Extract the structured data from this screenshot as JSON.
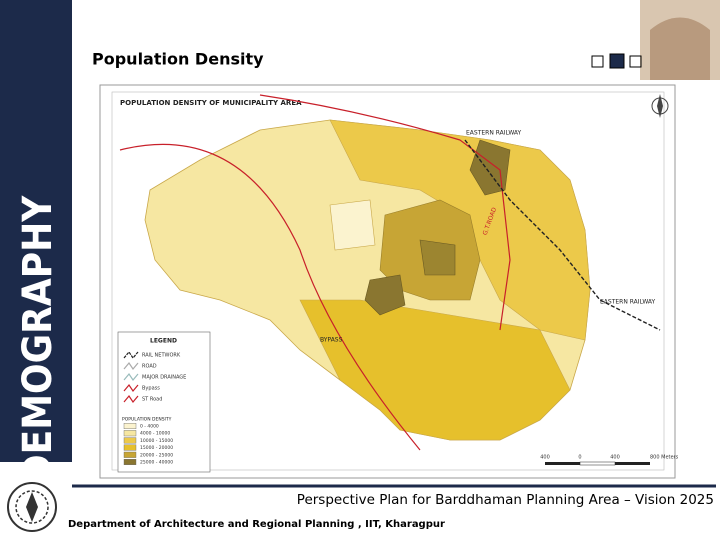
{
  "sidebar": {
    "label": "DEMOGRAPHY"
  },
  "header": {
    "title": "Population Density"
  },
  "map": {
    "title": "POPULATION DENSITY OF MUNICIPALITY AREA",
    "labels": [
      "EASTERN RAILWAY",
      "EASTERN RAILWAY",
      "BYPASS",
      "G.T.ROAD"
    ],
    "legend": {
      "title": "LEGEND",
      "lines": [
        "RAIL NETWORK",
        "ROAD",
        "MAJOR DRAINAGE",
        "Bypass",
        "ST Road"
      ],
      "density_title": "POPULATION DENSITY",
      "density_ranges": [
        "0 - 4000",
        "4000 - 10000",
        "10000 - 15000",
        "15000 - 20000",
        "20000 - 25000",
        "25000 - 40000"
      ]
    },
    "scale": [
      "400",
      "0",
      "400",
      "800 Meters"
    ]
  },
  "footer": {
    "plan": "Perspective Plan for Barddhaman Planning Area – Vision 2025",
    "department": "Department of Architecture and Regional Planning , IIT, Kharagpur"
  }
}
